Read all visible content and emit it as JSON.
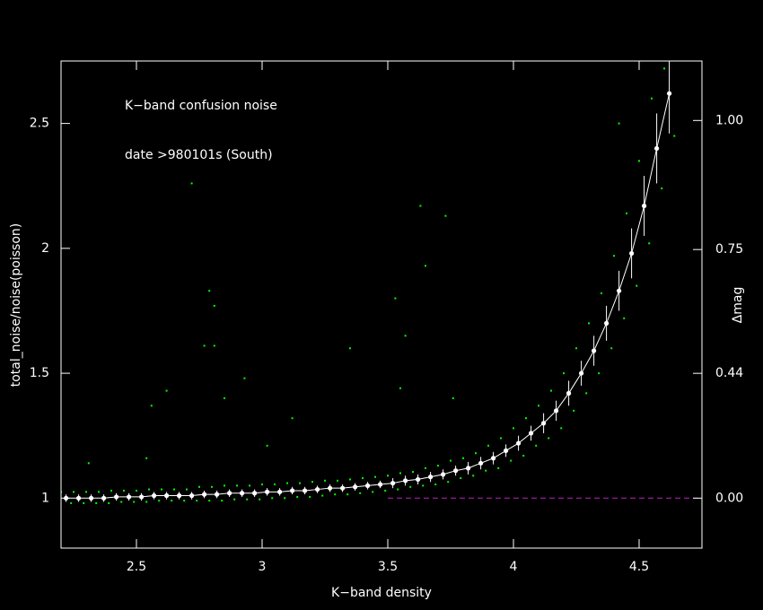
{
  "chart_data": {
    "type": "scatter",
    "annotations": [
      "K−band confusion noise",
      "date >980101s (South)"
    ],
    "xlabel": "K−band density",
    "ylabel": "total_noise/noise(poisson)",
    "y2label": "Δmag",
    "xlim": [
      2.2,
      4.75
    ],
    "ylim": [
      0.8,
      2.75
    ],
    "xticks": [
      2.5,
      3,
      3.5,
      4,
      4.5
    ],
    "yticks": [
      1,
      1.5,
      2,
      2.5
    ],
    "y2lim": [
      -0.242,
      1.098
    ],
    "y2_scale": "magnitude",
    "y2ticks": [
      {
        "value": 0,
        "label": "0.00"
      },
      0.44,
      0.75,
      {
        "value": 1,
        "label": "1.00"
      }
    ],
    "reference_line": {
      "y": 1,
      "x_from": 3.5,
      "color": "#c020c0"
    },
    "series": [
      {
        "color": "#00ff00",
        "marker": "dot",
        "x": [
          2.2,
          2.24,
          2.25,
          2.29,
          2.3,
          2.34,
          2.35,
          2.39,
          2.4,
          2.44,
          2.45,
          2.49,
          2.5,
          2.54,
          2.55,
          2.59,
          2.6,
          2.64,
          2.65,
          2.69,
          2.7,
          2.74,
          2.75,
          2.79,
          2.8,
          2.84,
          2.85,
          2.89,
          2.9,
          2.94,
          2.95,
          2.99,
          3.0,
          3.04,
          3.05,
          3.09,
          3.1,
          3.14,
          3.15,
          3.19,
          3.2,
          3.24,
          3.25,
          3.29,
          3.3,
          3.34,
          3.35,
          3.39,
          3.4,
          3.44,
          3.45,
          3.49,
          3.5,
          3.54,
          3.55,
          3.59,
          3.6,
          3.64,
          3.65,
          3.69,
          3.7,
          3.74,
          3.75,
          3.79,
          3.8,
          3.84,
          3.85,
          3.89,
          3.9,
          3.94,
          3.95,
          3.99,
          4.0,
          4.04,
          4.05,
          4.09,
          4.1,
          4.14,
          4.15,
          4.19,
          4.2,
          4.24,
          4.25,
          4.29,
          4.3,
          4.34,
          4.35,
          4.39,
          4.4,
          4.44,
          4.45,
          4.49,
          4.5,
          4.54,
          4.55,
          4.59,
          4.6,
          4.64,
          2.72,
          2.79,
          2.81,
          2.77,
          2.81,
          2.62,
          2.56,
          2.54,
          2.31,
          3.02,
          3.35,
          3.53,
          3.63,
          3.65,
          3.73,
          3.57,
          4.42,
          2.93,
          3.12,
          3.76,
          3.55,
          2.85
        ],
        "values": [
          1.025,
          0.98,
          1.025,
          0.98,
          1.025,
          0.98,
          1.025,
          0.98,
          1.03,
          0.985,
          1.03,
          0.985,
          1.03,
          0.985,
          1.035,
          0.99,
          1.035,
          0.99,
          1.035,
          0.99,
          1.035,
          0.99,
          1.045,
          0.99,
          1.045,
          0.99,
          1.05,
          0.995,
          1.05,
          0.995,
          1.05,
          0.995,
          1.055,
          1.0,
          1.055,
          1.0,
          1.06,
          1.005,
          1.06,
          1.005,
          1.065,
          1.01,
          1.07,
          1.015,
          1.07,
          1.015,
          1.075,
          1.02,
          1.08,
          1.025,
          1.085,
          1.03,
          1.09,
          1.035,
          1.1,
          1.045,
          1.105,
          1.05,
          1.12,
          1.055,
          1.13,
          1.065,
          1.15,
          1.08,
          1.16,
          1.09,
          1.18,
          1.11,
          1.21,
          1.12,
          1.24,
          1.15,
          1.28,
          1.17,
          1.32,
          1.21,
          1.37,
          1.24,
          1.43,
          1.28,
          1.5,
          1.35,
          1.6,
          1.42,
          1.7,
          1.5,
          1.82,
          1.6,
          1.97,
          1.72,
          2.14,
          1.85,
          2.35,
          2.02,
          2.6,
          2.24,
          2.72,
          2.45,
          2.26,
          1.83,
          1.77,
          1.61,
          1.61,
          1.43,
          1.37,
          1.16,
          1.14,
          1.21,
          1.6,
          1.8,
          2.17,
          1.93,
          2.13,
          1.65,
          2.5,
          1.48,
          1.32,
          1.4,
          1.44,
          1.4
        ]
      },
      {
        "color": "#ffffff",
        "marker": "circle",
        "line": true,
        "x": [
          2.22,
          2.27,
          2.32,
          2.37,
          2.42,
          2.47,
          2.52,
          2.57,
          2.62,
          2.67,
          2.72,
          2.77,
          2.82,
          2.87,
          2.92,
          2.97,
          3.02,
          3.07,
          3.12,
          3.17,
          3.22,
          3.27,
          3.32,
          3.37,
          3.42,
          3.47,
          3.52,
          3.57,
          3.62,
          3.67,
          3.72,
          3.77,
          3.82,
          3.87,
          3.92,
          3.97,
          4.02,
          4.07,
          4.12,
          4.17,
          4.22,
          4.27,
          4.32,
          4.37,
          4.42,
          4.47,
          4.52,
          4.57,
          4.62
        ],
        "values": [
          1.0,
          1.0,
          1.0,
          1.0,
          1.005,
          1.005,
          1.005,
          1.01,
          1.01,
          1.01,
          1.01,
          1.015,
          1.015,
          1.02,
          1.02,
          1.02,
          1.025,
          1.025,
          1.03,
          1.03,
          1.035,
          1.04,
          1.04,
          1.045,
          1.05,
          1.055,
          1.06,
          1.07,
          1.075,
          1.085,
          1.095,
          1.11,
          1.12,
          1.14,
          1.16,
          1.19,
          1.22,
          1.26,
          1.3,
          1.35,
          1.42,
          1.5,
          1.59,
          1.7,
          1.83,
          1.98,
          2.17,
          2.4,
          2.62
        ],
        "errors": [
          0.015,
          0.015,
          0.015,
          0.015,
          0.015,
          0.015,
          0.015,
          0.015,
          0.015,
          0.015,
          0.015,
          0.015,
          0.015,
          0.015,
          0.015,
          0.015,
          0.015,
          0.015,
          0.015,
          0.015,
          0.015,
          0.015,
          0.015,
          0.015,
          0.015,
          0.015,
          0.02,
          0.02,
          0.02,
          0.02,
          0.02,
          0.02,
          0.025,
          0.025,
          0.025,
          0.025,
          0.03,
          0.03,
          0.04,
          0.04,
          0.05,
          0.05,
          0.06,
          0.07,
          0.08,
          0.1,
          0.12,
          0.14,
          0.16
        ]
      }
    ]
  }
}
